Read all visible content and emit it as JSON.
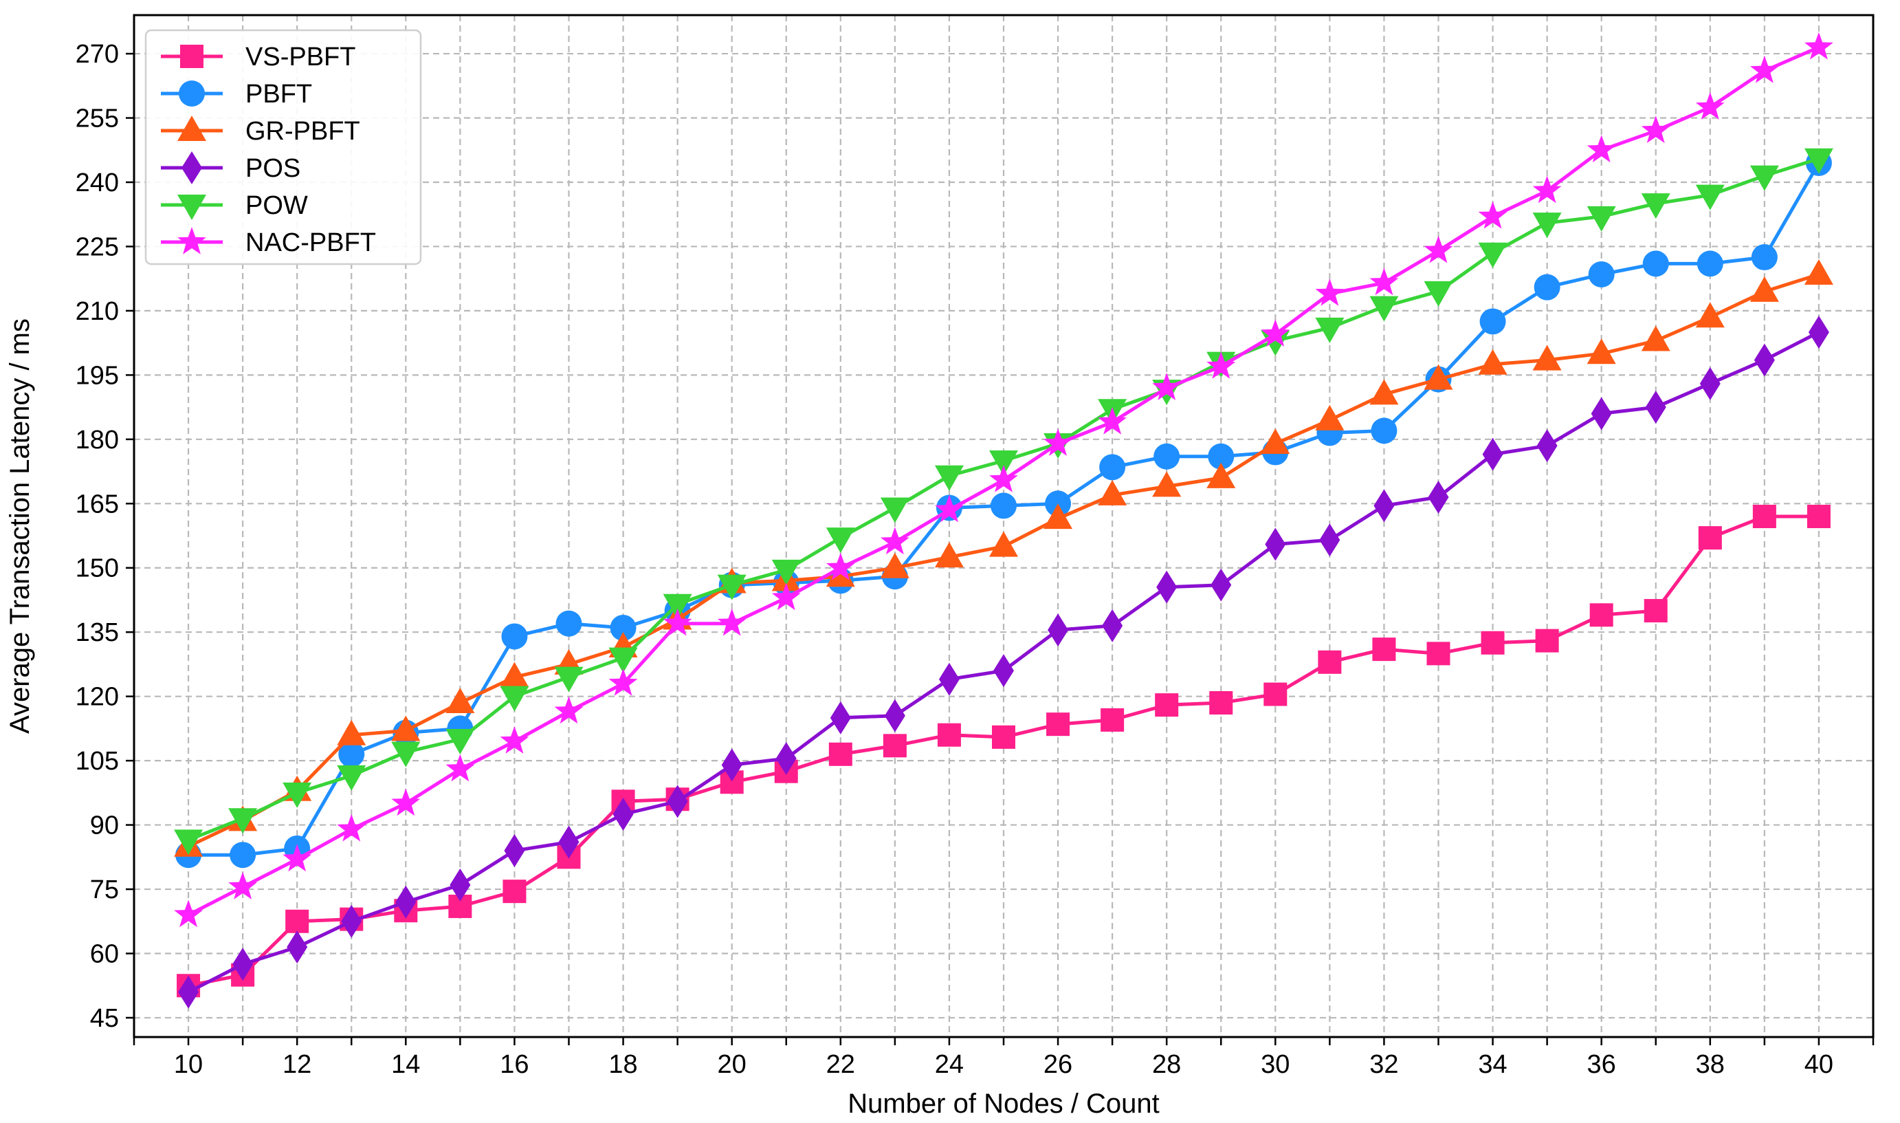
{
  "chart_data": {
    "type": "line",
    "xlabel": "Number of Nodes / Count",
    "ylabel": "Average Transaction Latency / ms",
    "xlim": [
      9,
      41
    ],
    "ylim": [
      40.5,
      279
    ],
    "xticks": [
      10,
      12,
      14,
      16,
      18,
      20,
      22,
      24,
      26,
      28,
      30,
      32,
      34,
      36,
      38,
      40
    ],
    "yticks": [
      45,
      60,
      75,
      90,
      105,
      120,
      135,
      150,
      165,
      180,
      195,
      210,
      225,
      240,
      255,
      270
    ],
    "grid": true,
    "legend_position": "top-left",
    "x": [
      10,
      11,
      12,
      13,
      14,
      15,
      16,
      17,
      18,
      19,
      20,
      21,
      22,
      23,
      24,
      25,
      26,
      27,
      28,
      29,
      30,
      31,
      32,
      33,
      34,
      35,
      36,
      37,
      38,
      39,
      40
    ],
    "series": [
      {
        "name": "VS-PBFT",
        "color": "#ff1f8a",
        "marker": "square",
        "values": [
          52.5,
          55,
          67.5,
          68,
          70,
          71,
          74.5,
          82.5,
          95.5,
          96,
          100,
          102.5,
          106.5,
          108.5,
          111,
          110.5,
          113.5,
          114.5,
          118,
          118.5,
          120.5,
          128,
          131,
          130,
          132.5,
          133,
          139,
          140,
          157,
          162,
          162
        ]
      },
      {
        "name": "PBFT",
        "color": "#1f8fff",
        "marker": "circle",
        "values": [
          83,
          83,
          84.5,
          106.5,
          111.5,
          112.5,
          134,
          137,
          136,
          140,
          146,
          146.5,
          147,
          148,
          164,
          164.5,
          165,
          173.5,
          176,
          176,
          177,
          181.5,
          182,
          194,
          207.5,
          215.5,
          218.5,
          221,
          221,
          222.5,
          244.5
        ]
      },
      {
        "name": "GR-PBFT",
        "color": "#ff5a14",
        "marker": "triangle-up",
        "values": [
          85,
          91,
          98,
          111,
          112,
          118.5,
          124.5,
          127.5,
          131.5,
          138,
          146.5,
          147,
          148,
          150,
          152.5,
          155,
          161.5,
          167,
          169,
          171,
          179,
          184.5,
          190.5,
          194,
          197.5,
          198.5,
          200,
          203,
          208.5,
          214.5,
          218.5
        ]
      },
      {
        "name": "POS",
        "color": "#8a0fd1",
        "marker": "diamond",
        "values": [
          51,
          57.5,
          61.5,
          67.5,
          72,
          76,
          84,
          86,
          92.5,
          95.5,
          104,
          105.5,
          115,
          115.5,
          124,
          126,
          135.5,
          136.5,
          145.5,
          146,
          155.5,
          156.5,
          164.5,
          166.5,
          176.5,
          178.5,
          186,
          187.5,
          193,
          198.5,
          205
        ]
      },
      {
        "name": "POW",
        "color": "#38d438",
        "marker": "triangle-down",
        "values": [
          86.5,
          91.5,
          97.5,
          101.5,
          107,
          110,
          120,
          124.5,
          129,
          141.5,
          146,
          149.5,
          157,
          164,
          171.5,
          175,
          179,
          187,
          191.5,
          198,
          203,
          206,
          211,
          214.5,
          223.5,
          230.5,
          232,
          235,
          237,
          241.5,
          245.5
        ]
      },
      {
        "name": "NAC-PBFT",
        "color": "#ff22ff",
        "marker": "star",
        "values": [
          69,
          75.5,
          82,
          89,
          95,
          103,
          109.5,
          116.5,
          123,
          137,
          137,
          143,
          150,
          156,
          163.5,
          170.5,
          179,
          184,
          192,
          197,
          204.5,
          214,
          216.5,
          224,
          232,
          238,
          247.5,
          252,
          257.5,
          266,
          271.5
        ]
      }
    ]
  }
}
